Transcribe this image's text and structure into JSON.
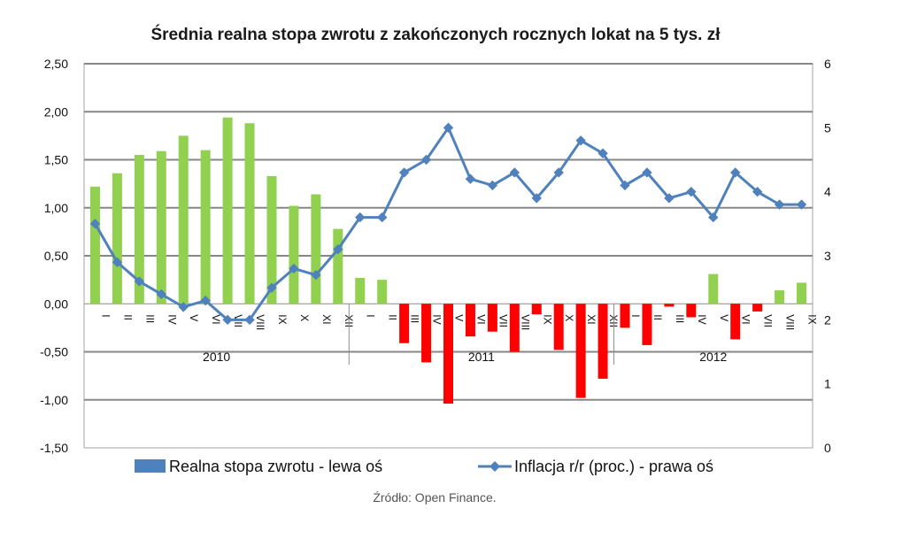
{
  "chart_data": {
    "type": "bar+line",
    "title": "Średnia realna stopa zwrotu z zakończonych rocznych lokat na 5 tys. zł",
    "source": "Źródło: Open Finance.",
    "left_axis": {
      "ylim": [
        -1.5,
        2.5
      ],
      "ticks": [
        2.5,
        2.0,
        1.5,
        1.0,
        0.5,
        0.0,
        -0.5,
        -1.0,
        -1.5
      ],
      "tick_labels": [
        "2,50",
        "2,00",
        "1,50",
        "1,00",
        "0,50",
        "0,00",
        "-0,50",
        "-1,00",
        "-1,50"
      ]
    },
    "right_axis": {
      "ylim": [
        0,
        6
      ],
      "ticks": [
        6,
        5,
        4,
        3,
        2,
        1,
        0
      ],
      "tick_labels": [
        "6",
        "5",
        "4",
        "3",
        "2",
        "1",
        "0"
      ]
    },
    "years": [
      {
        "label": "2010",
        "months": 12
      },
      {
        "label": "2011",
        "months": 12
      },
      {
        "label": "2012",
        "months": 9
      }
    ],
    "month_labels": [
      "I",
      "II",
      "III",
      "IV",
      "V",
      "VI",
      "VII",
      "VIII",
      "IX",
      "X",
      "XI",
      "XII",
      "I",
      "II",
      "III",
      "IV",
      "V",
      "VI",
      "VII",
      "VIII",
      "IX",
      "X",
      "XI",
      "XII",
      "I",
      "II",
      "III",
      "IV",
      "V",
      "VI",
      "VII",
      "VIII",
      "IX"
    ],
    "series": [
      {
        "name": "Realna stopa zwrotu - lewa oś",
        "axis": "left",
        "type": "bar",
        "legend_color": "#4f81bd",
        "positive_color": "#92d050",
        "negative_color": "#ff0000",
        "values": [
          1.22,
          1.36,
          1.55,
          1.59,
          1.75,
          1.6,
          1.94,
          1.88,
          1.33,
          1.02,
          1.14,
          0.78,
          0.27,
          0.25,
          -0.41,
          -0.61,
          -1.04,
          -0.34,
          -0.29,
          -0.5,
          -0.11,
          -0.48,
          -0.98,
          -0.78,
          -0.25,
          -0.43,
          -0.03,
          -0.14,
          0.31,
          -0.37,
          -0.08,
          0.14,
          0.22
        ]
      },
      {
        "name": "Inflacja r/r (proc.) - prawa oś",
        "axis": "right",
        "type": "line",
        "color": "#4f81bd",
        "values": [
          3.5,
          2.9,
          2.6,
          2.4,
          2.2,
          2.3,
          2.0,
          2.0,
          2.5,
          2.8,
          2.7,
          3.1,
          3.6,
          3.6,
          4.3,
          4.5,
          5.0,
          4.2,
          4.1,
          4.3,
          3.9,
          4.3,
          4.8,
          4.6,
          4.1,
          4.3,
          3.9,
          4.0,
          3.6,
          4.3,
          4.0,
          3.8,
          3.8
        ]
      }
    ]
  }
}
